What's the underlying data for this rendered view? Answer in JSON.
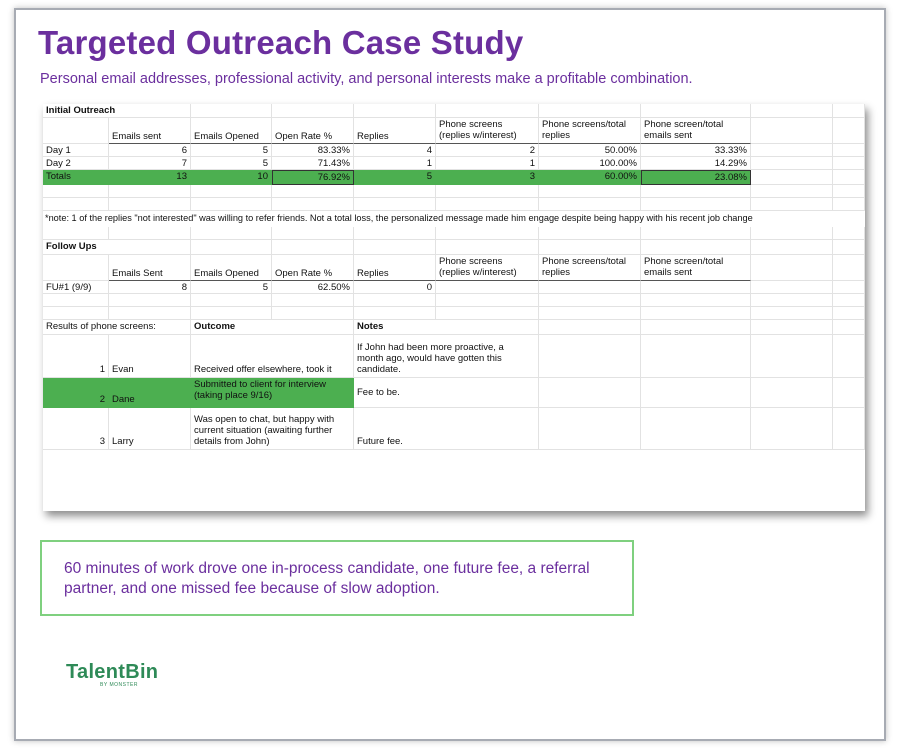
{
  "title": "Targeted Outreach Case Study",
  "subtitle": "Personal email addresses, professional activity, and personal interests make a profitable combination.",
  "initial": {
    "section": "Initial Outreach",
    "headers": [
      "",
      "Emails sent",
      "Emails Opened",
      "Open Rate %",
      "Replies",
      "Phone screens (replies w/interest)",
      "Phone screens/total replies",
      "Phone screen/total emails sent"
    ],
    "rows": [
      [
        "Day 1",
        "6",
        "5",
        "83.33%",
        "4",
        "2",
        "50.00%",
        "33.33%"
      ],
      [
        "Day 2",
        "7",
        "5",
        "71.43%",
        "1",
        "1",
        "100.00%",
        "14.29%"
      ]
    ],
    "totals": [
      "Totals",
      "13",
      "10",
      "76.92%",
      "5",
      "3",
      "60.00%",
      "23.08%"
    ]
  },
  "note": "*note: 1 of the replies \"not interested\" was willing to refer friends. Not a total loss, the personalized message made him engage despite being happy with his recent job change",
  "followups": {
    "section": "Follow Ups",
    "headers": [
      "",
      "Emails Sent",
      "Emails Opened",
      "Open Rate %",
      "Replies",
      "Phone screens (replies w/interest)",
      "Phone screens/total replies",
      "Phone screen/total emails sent"
    ],
    "rows": [
      [
        "FU#1 (9/9)",
        "8",
        "5",
        "62.50%",
        "0"
      ]
    ]
  },
  "results": {
    "label": "Results of phone screens:",
    "outcome_header": "Outcome",
    "notes_header": "Notes",
    "rows": [
      {
        "num": "1",
        "name": "Evan",
        "outcome": "Received offer elsewhere, took it",
        "notes": "If John had been more proactive, a month ago, would have gotten this candidate."
      },
      {
        "num": "2",
        "name": "Dane",
        "outcome": "Submitted to client for interview (taking place 9/16)",
        "notes": "Fee to be."
      },
      {
        "num": "3",
        "name": "Larry",
        "outcome": "Was open to chat, but happy with current situation (awaiting further details from John)",
        "notes": "Future fee."
      }
    ]
  },
  "callout": "60 minutes of work drove one in-process candidate, one future fee, a referral partner, and one missed fee because of slow adoption.",
  "logo": {
    "main": "TalentBin",
    "sub": "BY MONSTER"
  },
  "colors": {
    "purple": "#6b2f9e",
    "highlight_green": "#4caf50",
    "logo_green": "#2e8a57",
    "callout_border": "#7fd07f"
  }
}
